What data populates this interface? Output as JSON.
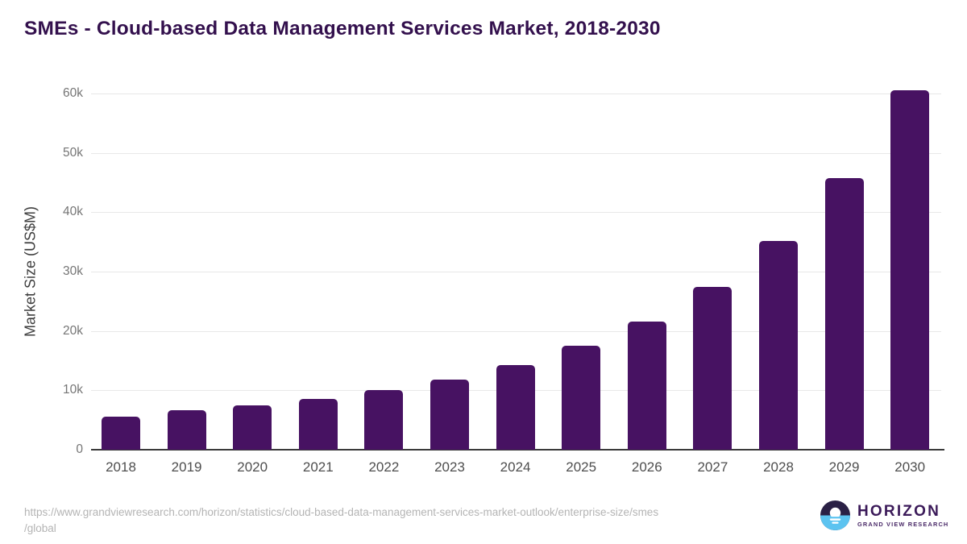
{
  "chart_data": {
    "type": "bar",
    "title": "SMEs - Cloud-based Data Management Services Market, 2018-2030",
    "xlabel": "",
    "ylabel": "Market Size (US$M)",
    "categories": [
      "2018",
      "2019",
      "2020",
      "2021",
      "2022",
      "2023",
      "2024",
      "2025",
      "2026",
      "2027",
      "2028",
      "2029",
      "2030"
    ],
    "values": [
      5600,
      6600,
      7400,
      8500,
      10000,
      11800,
      14200,
      17500,
      21600,
      27400,
      35200,
      45800,
      60500
    ],
    "unit": "US$M",
    "ylim": [
      0,
      60000
    ],
    "yticks": [
      {
        "value": 0,
        "label": "0"
      },
      {
        "value": 10000,
        "label": "10k"
      },
      {
        "value": 20000,
        "label": "20k"
      },
      {
        "value": 30000,
        "label": "30k"
      },
      {
        "value": 40000,
        "label": "40k"
      },
      {
        "value": 50000,
        "label": "50k"
      },
      {
        "value": 60000,
        "label": "60k"
      }
    ],
    "grid": "horizontal",
    "legend": "none",
    "bar_color": "#471262"
  },
  "footer": {
    "url_lines": [
      "https://www.grandviewresearch.com/horizon/statistics/cloud-based-data-management-services-market-outlook/enterprise-size/smes",
      "/global"
    ]
  },
  "logo": {
    "wordmark": "HORIZON",
    "subtitle": "GRAND VIEW RESEARCH",
    "colors": {
      "dark": "#2a2045",
      "blue": "#5cc3f0",
      "sun": "#ffffff"
    }
  }
}
